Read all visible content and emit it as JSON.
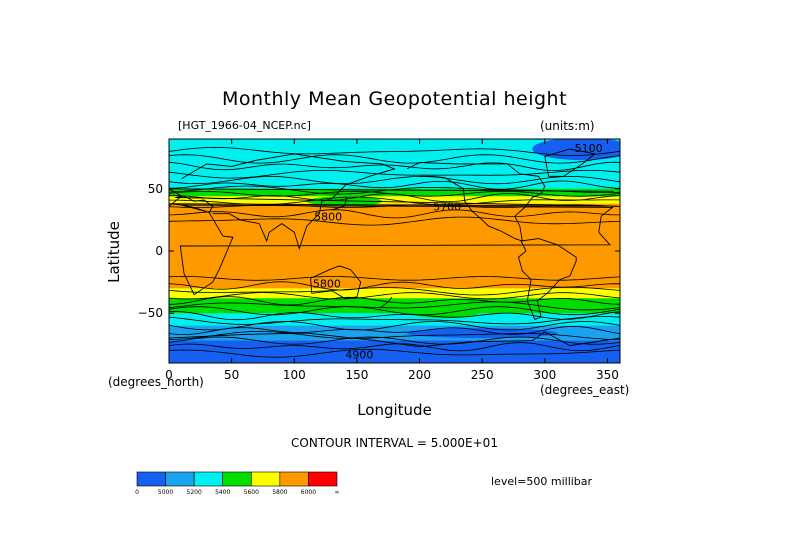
{
  "header": {
    "title": "Monthly Mean Geopotential height",
    "file_label": "[HGT_1966-04_NCEP.nc]",
    "units_label": "(units:m)"
  },
  "axes": {
    "xlabel": "Longitude",
    "ylabel": "Latitude",
    "x_unit_label": "(degrees_east)",
    "y_unit_label": "(degrees_north)"
  },
  "footer": {
    "contour_interval": "CONTOUR INTERVAL = 5.000E+01",
    "level": "level=500 millibar"
  },
  "colors": {
    "blue": "#1560f0",
    "mid_blue": "#1aa2ee",
    "cyan": "#00f0f0",
    "green": "#00dd00",
    "yellow": "#ffff00",
    "orange": "#ff9900",
    "red": "#ff0000"
  },
  "chart_data": {
    "type": "heatmap",
    "title": "Monthly Mean Geopotential height",
    "xlabel": "Longitude",
    "ylabel": "Latitude",
    "xlim": [
      0,
      360
    ],
    "ylim": [
      -90,
      90
    ],
    "xticks": [
      "0",
      "50",
      "100",
      "150",
      "200",
      "250",
      "300",
      "350"
    ],
    "xtick_values": [
      0,
      50,
      100,
      150,
      200,
      250,
      300,
      350
    ],
    "yticks": [
      "50",
      "0",
      "−50"
    ],
    "ytick_values": [
      50,
      0,
      -50
    ],
    "bands_lat": [
      {
        "from": 90,
        "to": 70,
        "class": "cyan"
      },
      {
        "from": 70,
        "to": 50,
        "class": "cyan"
      },
      {
        "from": 50,
        "to": 44,
        "class": "green"
      },
      {
        "from": 44,
        "to": 38,
        "class": "yellow"
      },
      {
        "from": 38,
        "to": 22,
        "class": "orange"
      },
      {
        "from": 22,
        "to": -20,
        "class": "orange"
      },
      {
        "from": -20,
        "to": -30,
        "class": "orange"
      },
      {
        "from": -30,
        "to": -38,
        "class": "yellow"
      },
      {
        "from": -38,
        "to": -50,
        "class": "green"
      },
      {
        "from": -50,
        "to": -60,
        "class": "cyan"
      },
      {
        "from": -60,
        "to": -72,
        "class": "mid_blue"
      },
      {
        "from": -72,
        "to": -90,
        "class": "blue"
      }
    ],
    "contour_labels": [
      {
        "text": "5700",
        "x": 222,
        "y": 35
      },
      {
        "text": "5800",
        "x": 127,
        "y": 27
      },
      {
        "text": "5800",
        "x": 126,
        "y": -27
      },
      {
        "text": "4900",
        "x": 152,
        "y": -84
      },
      {
        "text": "5100",
        "x": 335,
        "y": 82
      }
    ],
    "colorbar": {
      "levels": [
        "0",
        "5000",
        "5200",
        "5400",
        "5600",
        "5800",
        "6000",
        "∞"
      ],
      "colors": [
        "#1560f0",
        "#1aa2ee",
        "#00f0f0",
        "#00dd00",
        "#ffff00",
        "#ff9900",
        "#ff0000"
      ]
    }
  }
}
